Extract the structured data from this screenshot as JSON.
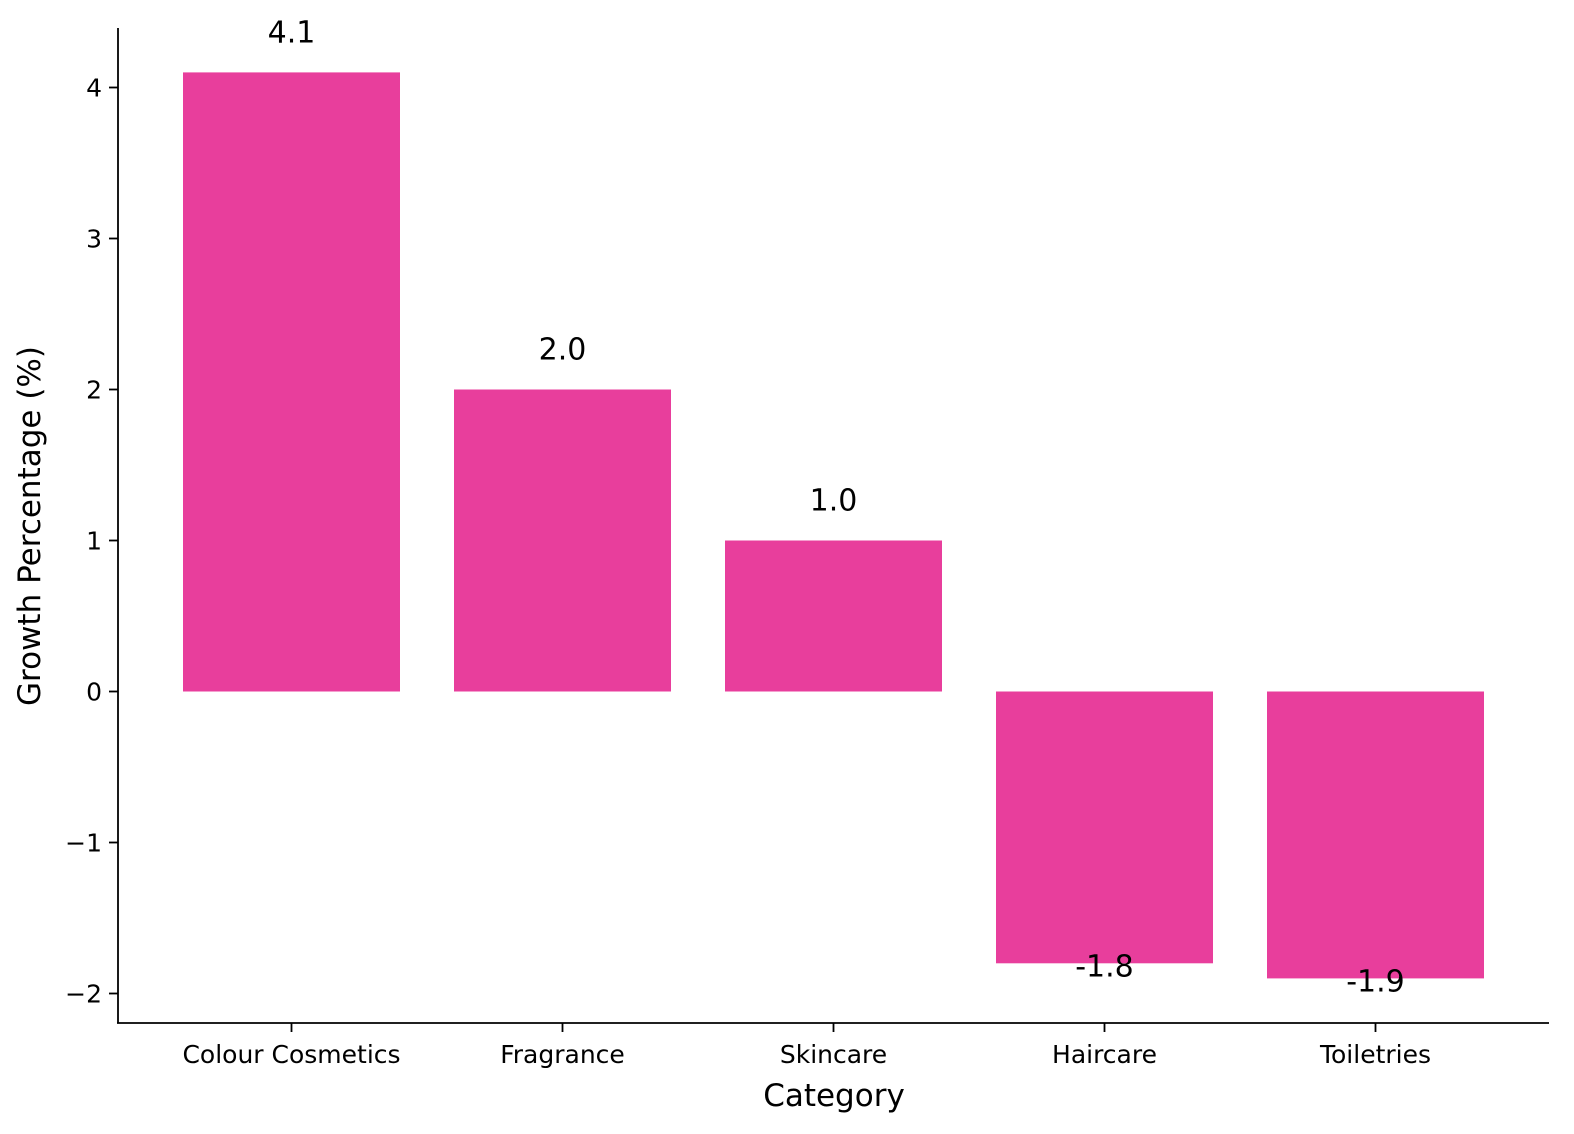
{
  "chart_data": {
    "type": "bar",
    "categories": [
      "Colour Cosmetics",
      "Fragrance",
      "Skincare",
      "Haircare",
      "Toiletries"
    ],
    "values": [
      4.1,
      2.0,
      1.0,
      -1.8,
      -1.9
    ],
    "data_labels": [
      "4.1",
      "2.0",
      "1.0",
      "-1.8",
      "-1.9"
    ],
    "xlabel": "Category",
    "ylabel": "Growth Percentage (%)",
    "ylim": [
      -2.2,
      4.4
    ],
    "yticks": [
      -2,
      -1,
      0,
      1,
      2,
      3,
      4
    ],
    "ytick_labels": [
      "−2",
      "−1",
      "0",
      "1",
      "2",
      "3",
      "4"
    ],
    "bar_color": "#E83E9C",
    "grid": false,
    "legend": "none"
  }
}
